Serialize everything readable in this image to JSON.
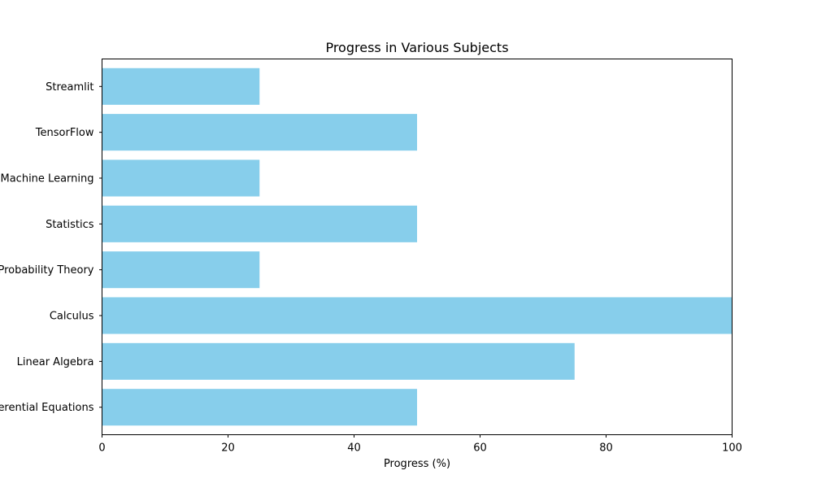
{
  "chart_data": {
    "type": "bar",
    "orientation": "horizontal",
    "title": "Progress in Various Subjects",
    "xlabel": "Progress (%)",
    "ylabel": "",
    "categories": [
      "Differential Equations",
      "Linear Algebra",
      "Calculus",
      "Probability Theory",
      "Statistics",
      "Machine Learning",
      "TensorFlow",
      "Streamlit"
    ],
    "values": [
      50,
      75,
      100,
      25,
      50,
      25,
      50,
      25
    ],
    "xlim": [
      0,
      100
    ],
    "xticks": [
      "0",
      "20",
      "40",
      "60",
      "80",
      "100"
    ],
    "grid": false,
    "legend": "none",
    "bar_color": "#87CEEB"
  }
}
